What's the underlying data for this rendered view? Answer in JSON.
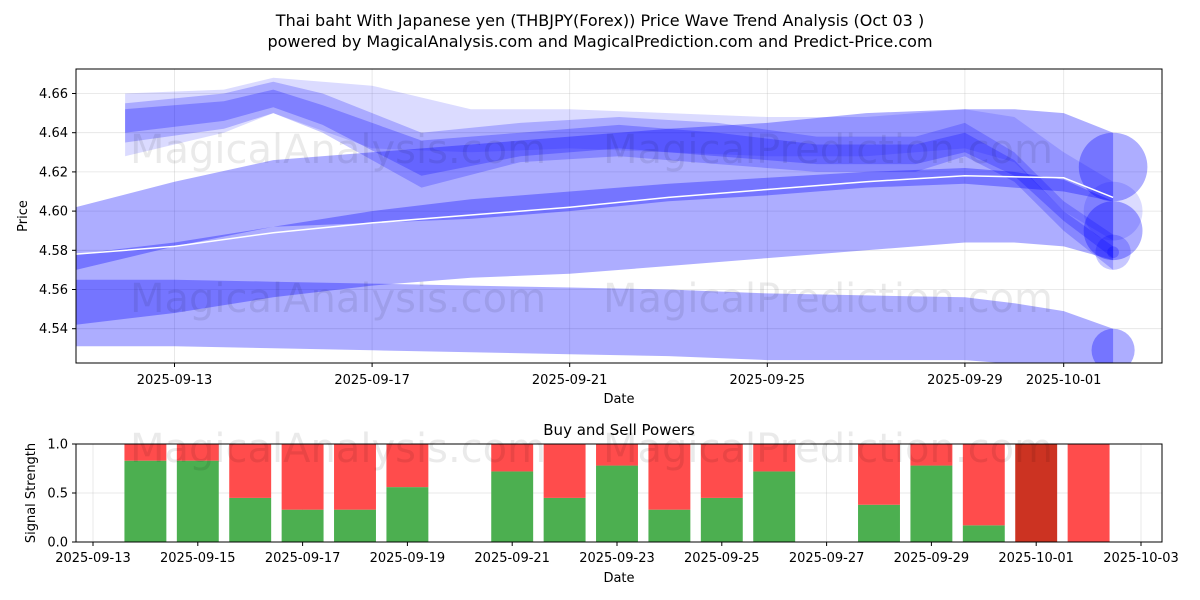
{
  "title_line1": "Thai baht With Japanese yen (THBJPY(Forex)) Price Wave Trend Analysis (Oct 03 )",
  "title_line2": "powered by MagicalAnalysis.com and MagicalPrediction.com and Predict-Price.com",
  "watermarks": [
    "MagicalAnalysis.com",
    "MagicalPrediction.com"
  ],
  "colors": {
    "band": "#0000ff",
    "buy": "#4caf50",
    "sell": "#ff4c4c",
    "sell_dark": "#cc3322",
    "trend": "#ffffff"
  },
  "chart_data": [
    {
      "type": "area",
      "title": "",
      "xlabel": "Date",
      "ylabel": "Price",
      "ylim": [
        4.5225,
        4.6725
      ],
      "x_ticks": [
        "2025-09-13",
        "2025-09-17",
        "2025-09-21",
        "2025-09-25",
        "2025-09-29",
        "2025-10-01"
      ],
      "y_ticks": [
        "4.54",
        "4.56",
        "4.58",
        "4.60",
        "4.62",
        "4.64",
        "4.66"
      ],
      "trend_line": {
        "x": [
          "2025-09-11",
          "2025-09-13",
          "2025-09-15",
          "2025-09-17",
          "2025-09-19",
          "2025-09-21",
          "2025-09-23",
          "2025-09-25",
          "2025-09-27",
          "2025-09-29",
          "2025-10-01",
          "2025-10-02"
        ],
        "values": [
          4.578,
          4.582,
          4.589,
          4.594,
          4.598,
          4.602,
          4.607,
          4.611,
          4.615,
          4.618,
          4.617,
          4.607
        ]
      },
      "wave_bands": [
        {
          "x": [
            "2025-09-12",
            "2025-09-14",
            "2025-09-15",
            "2025-09-16",
            "2025-09-18",
            "2025-09-20",
            "2025-09-22",
            "2025-09-24",
            "2025-09-26",
            "2025-09-28",
            "2025-09-29",
            "2025-09-30",
            "2025-10-01",
            "2025-10-02"
          ],
          "upper": [
            4.655,
            4.66,
            4.666,
            4.66,
            4.64,
            4.645,
            4.648,
            4.645,
            4.638,
            4.638,
            4.645,
            4.63,
            4.605,
            4.588
          ],
          "lower": [
            4.635,
            4.642,
            4.65,
            4.64,
            4.612,
            4.625,
            4.628,
            4.624,
            4.62,
            4.62,
            4.628,
            4.615,
            4.59,
            4.57
          ]
        },
        {
          "x": [
            "2025-09-12",
            "2025-09-14",
            "2025-09-15",
            "2025-09-16",
            "2025-09-18",
            "2025-09-20",
            "2025-09-22",
            "2025-09-24",
            "2025-09-26",
            "2025-09-28",
            "2025-09-29",
            "2025-09-30",
            "2025-10-01",
            "2025-10-02"
          ],
          "upper": [
            4.652,
            4.656,
            4.662,
            4.654,
            4.636,
            4.64,
            4.644,
            4.64,
            4.634,
            4.634,
            4.64,
            4.626,
            4.6,
            4.582
          ],
          "lower": [
            4.64,
            4.646,
            4.653,
            4.644,
            4.618,
            4.628,
            4.632,
            4.628,
            4.624,
            4.624,
            4.63,
            4.618,
            4.595,
            4.576
          ]
        },
        {
          "x": [
            "2025-09-12",
            "2025-09-14",
            "2025-09-15",
            "2025-09-17",
            "2025-09-19",
            "2025-09-21",
            "2025-09-23",
            "2025-09-25",
            "2025-09-27",
            "2025-09-29",
            "2025-09-30",
            "2025-10-01",
            "2025-10-02"
          ],
          "upper": [
            4.66,
            4.662,
            4.668,
            4.664,
            4.652,
            4.652,
            4.65,
            4.648,
            4.648,
            4.652,
            4.648,
            4.63,
            4.615
          ],
          "lower": [
            4.628,
            4.64,
            4.65,
            4.632,
            4.63,
            4.632,
            4.63,
            4.628,
            4.628,
            4.632,
            4.625,
            4.6,
            4.585
          ]
        },
        {
          "x": [
            "2025-09-11",
            "2025-09-13",
            "2025-09-15",
            "2025-09-17",
            "2025-09-19",
            "2025-09-21",
            "2025-09-23",
            "2025-09-25",
            "2025-09-27",
            "2025-09-29",
            "2025-09-30",
            "2025-10-01",
            "2025-10-02"
          ],
          "upper": [
            4.602,
            4.615,
            4.626,
            4.63,
            4.634,
            4.638,
            4.642,
            4.645,
            4.65,
            4.652,
            4.652,
            4.65,
            4.64
          ],
          "lower": [
            4.57,
            4.582,
            4.592,
            4.594,
            4.596,
            4.6,
            4.605,
            4.608,
            4.612,
            4.614,
            4.612,
            4.61,
            4.605
          ]
        },
        {
          "x": [
            "2025-09-11",
            "2025-09-13",
            "2025-09-15",
            "2025-09-17",
            "2025-09-19",
            "2025-09-21",
            "2025-09-23",
            "2025-09-25",
            "2025-09-27",
            "2025-09-29",
            "2025-09-30",
            "2025-10-01",
            "2025-10-02"
          ],
          "upper": [
            4.578,
            4.584,
            4.592,
            4.6,
            4.606,
            4.61,
            4.614,
            4.617,
            4.62,
            4.622,
            4.62,
            4.616,
            4.605
          ],
          "lower": [
            4.542,
            4.548,
            4.556,
            4.562,
            4.566,
            4.568,
            4.572,
            4.576,
            4.58,
            4.584,
            4.584,
            4.582,
            4.575
          ]
        },
        {
          "x": [
            "2025-09-11",
            "2025-09-13",
            "2025-09-15",
            "2025-09-17",
            "2025-09-19",
            "2025-09-21",
            "2025-09-23",
            "2025-09-25",
            "2025-09-27",
            "2025-09-29",
            "2025-09-30",
            "2025-10-01",
            "2025-10-02"
          ],
          "upper": [
            4.565,
            4.565,
            4.564,
            4.563,
            4.562,
            4.561,
            4.56,
            4.558,
            4.557,
            4.556,
            4.553,
            4.549,
            4.54
          ],
          "lower": [
            4.531,
            4.531,
            4.53,
            4.529,
            4.528,
            4.527,
            4.526,
            4.524,
            4.524,
            4.524,
            4.522,
            4.521,
            4.518
          ]
        }
      ]
    },
    {
      "type": "bar",
      "title": "Buy and Sell Powers",
      "xlabel": "Date",
      "ylabel": "Signal Strength",
      "ylim": [
        0,
        1
      ],
      "y_ticks": [
        "0.0",
        "0.5",
        "1.0"
      ],
      "x_ticks": [
        "2025-09-13",
        "2025-09-15",
        "2025-09-17",
        "2025-09-19",
        "2025-09-21",
        "2025-09-23",
        "2025-09-25",
        "2025-09-27",
        "2025-09-29",
        "2025-10-01",
        "2025-10-03"
      ],
      "categories": [
        "2025-09-14",
        "2025-09-15",
        "2025-09-16",
        "2025-09-17",
        "2025-09-18",
        "2025-09-19",
        "2025-09-21",
        "2025-09-22",
        "2025-09-23",
        "2025-09-24",
        "2025-09-25",
        "2025-09-26",
        "2025-09-28",
        "2025-09-29",
        "2025-09-30",
        "2025-10-01",
        "2025-10-02"
      ],
      "series": [
        {
          "name": "Buy",
          "values": [
            0.83,
            0.83,
            0.45,
            0.33,
            0.33,
            0.56,
            0.72,
            0.45,
            0.78,
            0.33,
            0.45,
            0.72,
            0.38,
            0.78,
            0.17,
            0.0,
            0.0
          ]
        },
        {
          "name": "Sell",
          "values": [
            0.17,
            0.17,
            0.55,
            0.67,
            0.67,
            0.44,
            0.28,
            0.55,
            0.22,
            0.67,
            0.55,
            0.28,
            0.62,
            0.22,
            0.83,
            1.0,
            1.0
          ]
        }
      ],
      "sell_dark_index": 15
    }
  ]
}
